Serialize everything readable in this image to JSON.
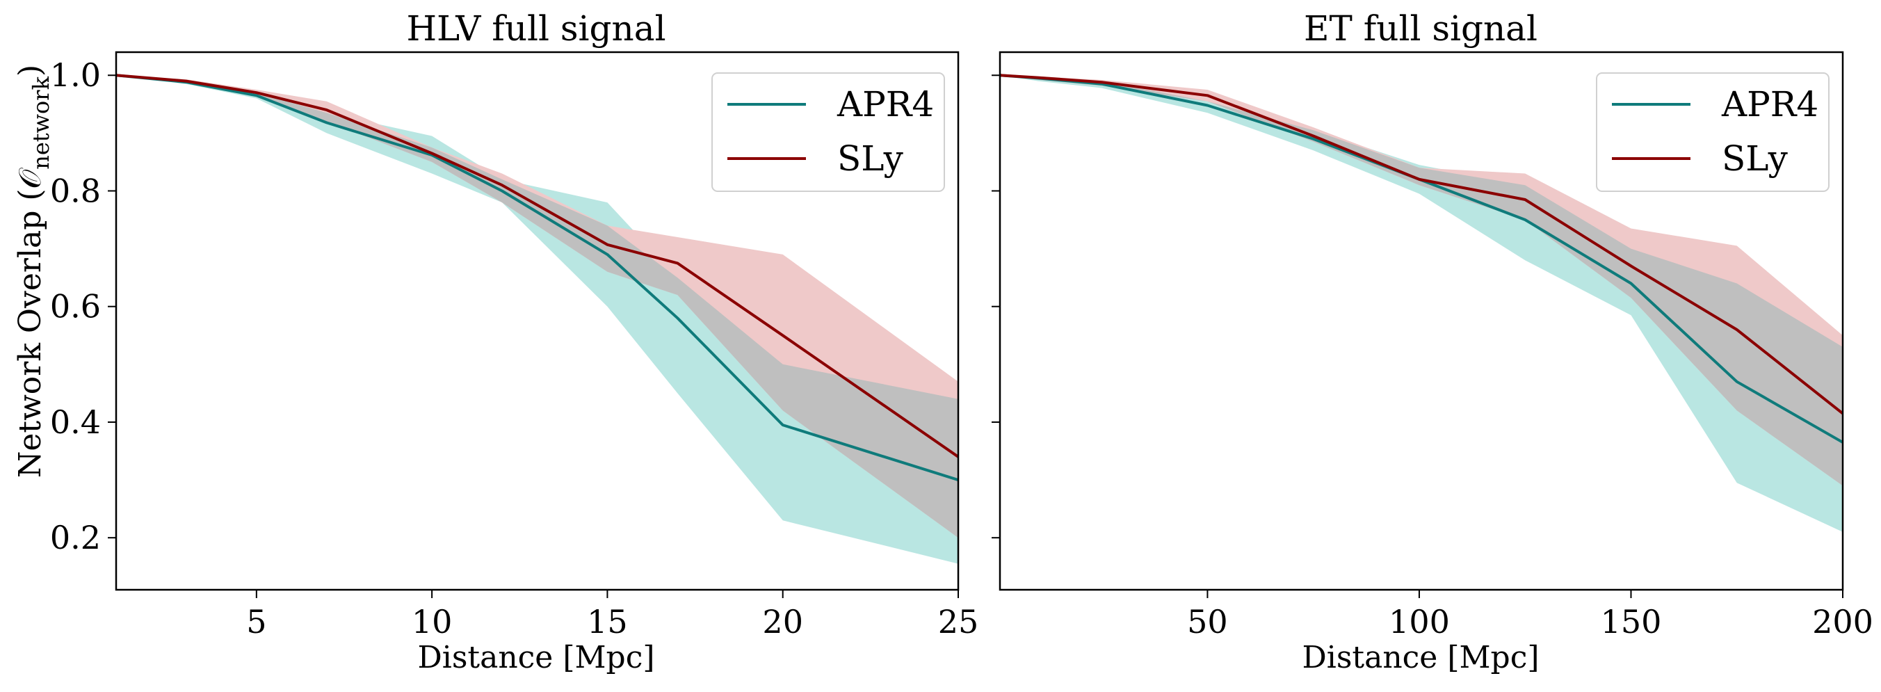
{
  "figure": {
    "ylabel": "Network Overlap (𝒪",
    "ylabel_sub": "network",
    "ylabel_close": ")"
  },
  "colors": {
    "apr4": "#0f7b7b",
    "sly": "#8b0000",
    "apr4_band": "#b9e6e2",
    "sly_band": "#efc9c9",
    "overlap_band": "#bfbfbf"
  },
  "chart_data": [
    {
      "type": "line",
      "title": "HLV full signal",
      "xlabel": "Distance [Mpc]",
      "ylabel": "Network Overlap (O_network)",
      "xlim": [
        1,
        25
      ],
      "ylim": [
        0.11,
        1.04
      ],
      "xticks": [
        5,
        10,
        15,
        20,
        25
      ],
      "yticks": [
        0.2,
        0.4,
        0.6,
        0.8,
        1.0
      ],
      "x": [
        1,
        3,
        5,
        7,
        10,
        12,
        15,
        17,
        20,
        25
      ],
      "series": [
        {
          "name": "APR4",
          "values": [
            1.0,
            0.988,
            0.965,
            0.918,
            0.862,
            0.8,
            0.69,
            0.58,
            0.395,
            0.3
          ],
          "lower": [
            1.0,
            0.985,
            0.96,
            0.9,
            0.83,
            0.78,
            0.6,
            0.45,
            0.23,
            0.155
          ],
          "upper": [
            1.0,
            0.99,
            0.97,
            0.935,
            0.895,
            0.82,
            0.78,
            0.65,
            0.5,
            0.44
          ]
        },
        {
          "name": "SLy",
          "values": [
            1.0,
            0.99,
            0.97,
            0.94,
            0.865,
            0.81,
            0.707,
            0.675,
            0.55,
            0.34
          ],
          "lower": [
            1.0,
            0.987,
            0.963,
            0.92,
            0.85,
            0.78,
            0.66,
            0.62,
            0.42,
            0.2
          ],
          "upper": [
            1.0,
            0.993,
            0.975,
            0.955,
            0.875,
            0.83,
            0.74,
            0.72,
            0.69,
            0.47
          ]
        }
      ],
      "legend": [
        "APR4",
        "SLy"
      ],
      "legend_loc": "upper right"
    },
    {
      "type": "line",
      "title": "ET full signal",
      "xlabel": "Distance [Mpc]",
      "ylabel": "",
      "xlim": [
        1,
        200
      ],
      "ylim": [
        0.11,
        1.04
      ],
      "xticks": [
        50,
        100,
        150,
        200
      ],
      "yticks": [
        0.2,
        0.4,
        0.6,
        0.8,
        1.0
      ],
      "x": [
        1,
        10,
        25,
        50,
        75,
        100,
        125,
        150,
        175,
        200
      ],
      "series": [
        {
          "name": "APR4",
          "values": [
            1.0,
            0.995,
            0.985,
            0.948,
            0.89,
            0.82,
            0.75,
            0.64,
            0.47,
            0.365
          ],
          "lower": [
            1.0,
            0.99,
            0.978,
            0.935,
            0.87,
            0.795,
            0.68,
            0.585,
            0.295,
            0.21
          ],
          "upper": [
            1.0,
            0.997,
            0.99,
            0.955,
            0.905,
            0.845,
            0.81,
            0.7,
            0.64,
            0.53
          ]
        },
        {
          "name": "SLy",
          "values": [
            1.0,
            0.996,
            0.988,
            0.965,
            0.895,
            0.82,
            0.785,
            0.67,
            0.56,
            0.415
          ],
          "lower": [
            1.0,
            0.992,
            0.982,
            0.955,
            0.885,
            0.81,
            0.75,
            0.615,
            0.42,
            0.29
          ],
          "upper": [
            1.0,
            0.998,
            0.992,
            0.975,
            0.91,
            0.84,
            0.83,
            0.735,
            0.705,
            0.55
          ]
        }
      ],
      "legend": [
        "APR4",
        "SLy"
      ],
      "legend_loc": "upper right"
    }
  ]
}
